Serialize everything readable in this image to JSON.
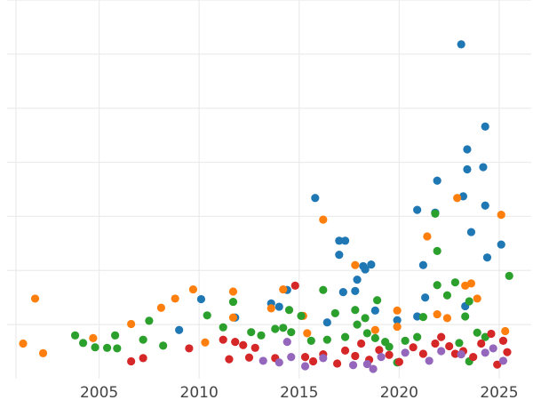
{
  "chart_data": {
    "type": "scatter",
    "title": "",
    "xlabel": "",
    "ylabel": "",
    "xlim": [
      2000.4,
      2026.6
    ],
    "ylim": [
      0,
      700
    ],
    "x_ticks": [
      2005,
      2010,
      2015,
      2020,
      2025
    ],
    "x_tick_labels": [
      "2005",
      "2010",
      "2015",
      "2020",
      "2025"
    ],
    "y_gridlines": [
      100,
      200,
      300,
      400,
      500,
      600,
      700
    ],
    "grid": true,
    "legend": "none",
    "colors": {
      "blue": "#1f77b4",
      "orange": "#ff7f0e",
      "green": "#2ca02c",
      "red": "#d62728",
      "purple": "#9467bd"
    },
    "series": [
      {
        "color": "#1f77b4",
        "points": [
          [
            2009.0,
            90
          ],
          [
            2010.1,
            147
          ],
          [
            2011.8,
            113
          ],
          [
            2013.6,
            139
          ],
          [
            2014.0,
            133
          ],
          [
            2014.4,
            164
          ],
          [
            2015.8,
            334
          ],
          [
            2016.4,
            104
          ],
          [
            2017.0,
            255
          ],
          [
            2017.0,
            229
          ],
          [
            2017.2,
            160
          ],
          [
            2017.3,
            255
          ],
          [
            2017.8,
            162
          ],
          [
            2017.9,
            183
          ],
          [
            2018.2,
            208
          ],
          [
            2018.3,
            202
          ],
          [
            2018.6,
            211
          ],
          [
            2018.8,
            126
          ],
          [
            2019.9,
            108
          ],
          [
            2020.9,
            115
          ],
          [
            2020.9,
            312
          ],
          [
            2021.2,
            210
          ],
          [
            2021.3,
            150
          ],
          [
            2021.8,
            307
          ],
          [
            2021.9,
            366
          ],
          [
            2023.1,
            618
          ],
          [
            2023.2,
            337
          ],
          [
            2023.3,
            134
          ],
          [
            2023.4,
            387
          ],
          [
            2023.4,
            424
          ],
          [
            2023.6,
            271
          ],
          [
            2024.2,
            391
          ],
          [
            2024.3,
            320
          ],
          [
            2024.3,
            466
          ],
          [
            2024.4,
            224
          ],
          [
            2025.1,
            248
          ]
        ]
      },
      {
        "color": "#ff7f0e",
        "points": [
          [
            2001.2,
            65
          ],
          [
            2001.8,
            148
          ],
          [
            2002.2,
            47
          ],
          [
            2004.7,
            75
          ],
          [
            2006.6,
            101
          ],
          [
            2008.1,
            131
          ],
          [
            2008.8,
            148
          ],
          [
            2009.7,
            165
          ],
          [
            2010.3,
            67
          ],
          [
            2011.7,
            161
          ],
          [
            2011.7,
            113
          ],
          [
            2013.6,
            130
          ],
          [
            2014.2,
            165
          ],
          [
            2015.2,
            116
          ],
          [
            2015.4,
            84
          ],
          [
            2016.2,
            294
          ],
          [
            2017.8,
            210
          ],
          [
            2018.8,
            90
          ],
          [
            2019.9,
            96
          ],
          [
            2019.9,
            126
          ],
          [
            2021.4,
            263
          ],
          [
            2021.9,
            119
          ],
          [
            2022.4,
            112
          ],
          [
            2022.9,
            334
          ],
          [
            2023.3,
            172
          ],
          [
            2023.6,
            176
          ],
          [
            2023.9,
            148
          ],
          [
            2025.1,
            303
          ],
          [
            2025.3,
            88
          ]
        ]
      },
      {
        "color": "#2ca02c",
        "points": [
          [
            2003.8,
            80
          ],
          [
            2004.2,
            66
          ],
          [
            2004.8,
            58
          ],
          [
            2005.4,
            57
          ],
          [
            2005.8,
            80
          ],
          [
            2005.9,
            56
          ],
          [
            2007.2,
            72
          ],
          [
            2007.5,
            107
          ],
          [
            2008.2,
            61
          ],
          [
            2010.4,
            117
          ],
          [
            2011.2,
            95
          ],
          [
            2011.7,
            142
          ],
          [
            2012.6,
            86
          ],
          [
            2013.1,
            80
          ],
          [
            2013.8,
            92
          ],
          [
            2014.2,
            94
          ],
          [
            2014.5,
            127
          ],
          [
            2014.6,
            86
          ],
          [
            2015.1,
            116
          ],
          [
            2015.6,
            70
          ],
          [
            2016.2,
            164
          ],
          [
            2016.4,
            72
          ],
          [
            2016.8,
            121
          ],
          [
            2017.3,
            77
          ],
          [
            2017.8,
            127
          ],
          [
            2017.9,
            100
          ],
          [
            2018.3,
            112
          ],
          [
            2018.4,
            84
          ],
          [
            2018.8,
            75
          ],
          [
            2018.9,
            145
          ],
          [
            2019.3,
            68
          ],
          [
            2019.5,
            59
          ],
          [
            2019.9,
            30
          ],
          [
            2020.3,
            70
          ],
          [
            2020.9,
            77
          ],
          [
            2021.2,
            114
          ],
          [
            2021.8,
            305
          ],
          [
            2021.9,
            236
          ],
          [
            2021.9,
            173
          ],
          [
            2022.4,
            154
          ],
          [
            2022.8,
            178
          ],
          [
            2023.0,
            66
          ],
          [
            2023.3,
            115
          ],
          [
            2023.5,
            143
          ],
          [
            2023.5,
            32
          ],
          [
            2023.9,
            85
          ],
          [
            2024.3,
            77
          ],
          [
            2025.5,
            190
          ]
        ]
      },
      {
        "color": "#d62728",
        "points": [
          [
            2006.6,
            32
          ],
          [
            2007.2,
            38
          ],
          [
            2009.5,
            56
          ],
          [
            2011.2,
            72
          ],
          [
            2011.5,
            36
          ],
          [
            2011.8,
            68
          ],
          [
            2012.2,
            62
          ],
          [
            2012.5,
            39
          ],
          [
            2012.8,
            57
          ],
          [
            2013.8,
            38
          ],
          [
            2014.8,
            172
          ],
          [
            2015.3,
            40
          ],
          [
            2015.7,
            32
          ],
          [
            2016.2,
            45
          ],
          [
            2016.9,
            28
          ],
          [
            2017.3,
            52
          ],
          [
            2017.8,
            42
          ],
          [
            2018.1,
            65
          ],
          [
            2018.5,
            35
          ],
          [
            2019.0,
            53
          ],
          [
            2019.5,
            44
          ],
          [
            2020.0,
            31
          ],
          [
            2020.7,
            58
          ],
          [
            2021.2,
            46
          ],
          [
            2021.8,
            65
          ],
          [
            2022.1,
            77
          ],
          [
            2022.5,
            60
          ],
          [
            2022.8,
            46
          ],
          [
            2023.2,
            51
          ],
          [
            2023.7,
            40
          ],
          [
            2024.1,
            65
          ],
          [
            2024.6,
            83
          ],
          [
            2024.9,
            26
          ],
          [
            2025.2,
            70
          ],
          [
            2025.4,
            49
          ]
        ]
      },
      {
        "color": "#9467bd",
        "points": [
          [
            2013.2,
            33
          ],
          [
            2014.0,
            30
          ],
          [
            2014.4,
            68
          ],
          [
            2014.6,
            40
          ],
          [
            2015.3,
            23
          ],
          [
            2016.2,
            38
          ],
          [
            2017.7,
            25
          ],
          [
            2018.4,
            27
          ],
          [
            2018.7,
            18
          ],
          [
            2019.1,
            40
          ],
          [
            2020.3,
            48
          ],
          [
            2021.5,
            33
          ],
          [
            2022.1,
            51
          ],
          [
            2023.1,
            45
          ],
          [
            2024.3,
            48
          ],
          [
            2024.7,
            56
          ],
          [
            2025.2,
            33
          ]
        ]
      }
    ]
  }
}
